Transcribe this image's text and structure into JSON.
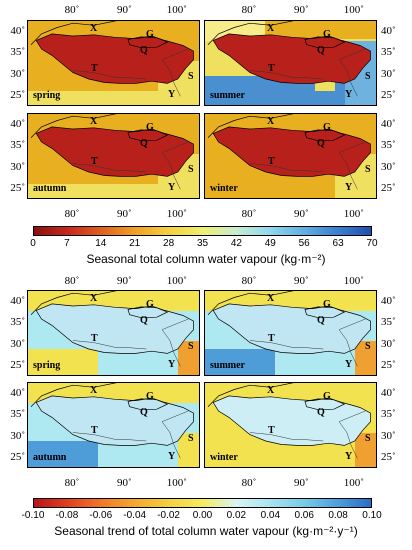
{
  "lon_ticks": [
    "80˚",
    "90˚",
    "100˚"
  ],
  "lat_ticks": [
    "40˚",
    "35˚",
    "30˚",
    "25˚"
  ],
  "region_labels": {
    "x": "X",
    "g": "G",
    "q": "Q",
    "t": "T",
    "s": "S",
    "y": "Y"
  },
  "seasons": [
    "spring",
    "summer",
    "autumn",
    "winter"
  ],
  "top_figure": {
    "colorbar_ticks": [
      "0",
      "7",
      "14",
      "21",
      "28",
      "35",
      "42",
      "49",
      "56",
      "63",
      "70"
    ],
    "colorbar_title": "Seasonal total column water vapour (kg·m⁻²)",
    "colors": {
      "plateau": "#b8201c",
      "mid": "#e8b020",
      "low": "#f0e060",
      "wet": "#4a90d0"
    }
  },
  "bottom_figure": {
    "colorbar_ticks": [
      "-0.10",
      "-0.08",
      "-0.06",
      "-0.04",
      "-0.02",
      "0.00",
      "0.02",
      "0.04",
      "0.06",
      "0.08",
      "0.10"
    ],
    "colorbar_title": "Seasonal trend of total column water vapour (kg·m⁻²·y⁻¹)",
    "colors": {
      "cyan": "#aee8f0",
      "yellow": "#f2e250",
      "blue": "#4e9cd8",
      "orange": "#f0a030"
    }
  }
}
